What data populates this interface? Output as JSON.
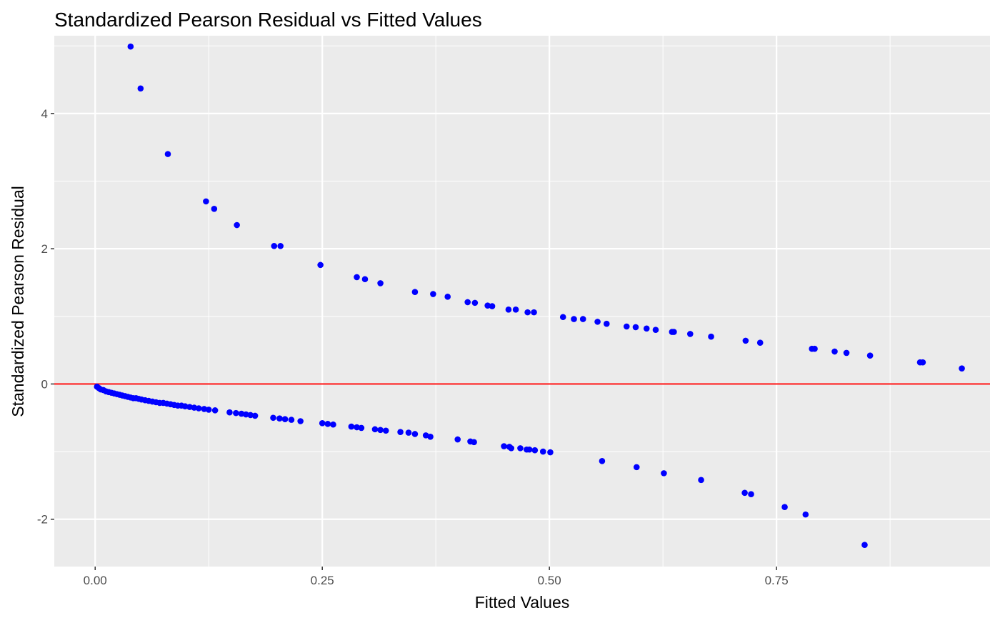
{
  "chart_data": {
    "type": "scatter",
    "title": "Standardized Pearson Residual vs Fitted Values",
    "xlabel": "Fitted Values",
    "ylabel": "Standardized Pearson Residual",
    "xlim": [
      -0.045,
      0.985
    ],
    "ylim": [
      -2.7,
      5.15
    ],
    "x_ticks": [
      0,
      0.25,
      0.5,
      0.75
    ],
    "x_tick_labels": [
      "0.00",
      "0.25",
      "0.50",
      "0.75"
    ],
    "y_ticks": [
      -2,
      0,
      2,
      4
    ],
    "y_tick_labels": [
      "-2",
      "0",
      "2",
      "4"
    ],
    "reference_line": {
      "y": 0,
      "color": "#FF0000"
    },
    "point_color": "#0000FF",
    "panel_background": "#EBEBEB",
    "grid": true,
    "legend": "none",
    "series": [
      {
        "points": [
          [
            0.039,
            4.99
          ],
          [
            0.05,
            4.37
          ],
          [
            0.08,
            3.4
          ],
          [
            0.122,
            2.7
          ],
          [
            0.131,
            2.59
          ],
          [
            0.156,
            2.35
          ],
          [
            0.197,
            2.04
          ],
          [
            0.204,
            2.04
          ],
          [
            0.248,
            1.76
          ],
          [
            0.288,
            1.58
          ],
          [
            0.297,
            1.55
          ],
          [
            0.314,
            1.49
          ],
          [
            0.352,
            1.36
          ],
          [
            0.372,
            1.33
          ],
          [
            0.388,
            1.29
          ],
          [
            0.41,
            1.21
          ],
          [
            0.418,
            1.2
          ],
          [
            0.432,
            1.16
          ],
          [
            0.437,
            1.15
          ],
          [
            0.455,
            1.1
          ],
          [
            0.463,
            1.1
          ],
          [
            0.476,
            1.06
          ],
          [
            0.483,
            1.06
          ],
          [
            0.515,
            0.99
          ],
          [
            0.527,
            0.96
          ],
          [
            0.537,
            0.96
          ],
          [
            0.553,
            0.92
          ],
          [
            0.563,
            0.89
          ],
          [
            0.585,
            0.85
          ],
          [
            0.595,
            0.84
          ],
          [
            0.607,
            0.82
          ],
          [
            0.617,
            0.8
          ],
          [
            0.635,
            0.77
          ],
          [
            0.637,
            0.77
          ],
          [
            0.655,
            0.74
          ],
          [
            0.678,
            0.7
          ],
          [
            0.716,
            0.64
          ],
          [
            0.732,
            0.61
          ],
          [
            0.789,
            0.52
          ],
          [
            0.792,
            0.52
          ],
          [
            0.814,
            0.48
          ],
          [
            0.827,
            0.46
          ],
          [
            0.853,
            0.42
          ],
          [
            0.908,
            0.32
          ],
          [
            0.911,
            0.32
          ],
          [
            0.954,
            0.23
          ],
          [
            0.002,
            -0.04
          ],
          [
            0.004,
            -0.06
          ],
          [
            0.006,
            -0.08
          ],
          [
            0.009,
            -0.09
          ],
          [
            0.012,
            -0.11
          ],
          [
            0.015,
            -0.12
          ],
          [
            0.018,
            -0.13
          ],
          [
            0.021,
            -0.14
          ],
          [
            0.024,
            -0.15
          ],
          [
            0.027,
            -0.16
          ],
          [
            0.03,
            -0.17
          ],
          [
            0.033,
            -0.18
          ],
          [
            0.036,
            -0.19
          ],
          [
            0.039,
            -0.2
          ],
          [
            0.042,
            -0.21
          ],
          [
            0.045,
            -0.21
          ],
          [
            0.048,
            -0.22
          ],
          [
            0.051,
            -0.23
          ],
          [
            0.055,
            -0.24
          ],
          [
            0.059,
            -0.25
          ],
          [
            0.063,
            -0.26
          ],
          [
            0.067,
            -0.27
          ],
          [
            0.071,
            -0.28
          ],
          [
            0.075,
            -0.28
          ],
          [
            0.079,
            -0.29
          ],
          [
            0.083,
            -0.3
          ],
          [
            0.087,
            -0.31
          ],
          [
            0.091,
            -0.32
          ],
          [
            0.095,
            -0.32
          ],
          [
            0.099,
            -0.33
          ],
          [
            0.104,
            -0.34
          ],
          [
            0.109,
            -0.35
          ],
          [
            0.114,
            -0.36
          ],
          [
            0.12,
            -0.37
          ],
          [
            0.125,
            -0.38
          ],
          [
            0.132,
            -0.39
          ],
          [
            0.148,
            -0.42
          ],
          [
            0.155,
            -0.43
          ],
          [
            0.161,
            -0.44
          ],
          [
            0.166,
            -0.45
          ],
          [
            0.171,
            -0.46
          ],
          [
            0.176,
            -0.47
          ],
          [
            0.196,
            -0.5
          ],
          [
            0.203,
            -0.51
          ],
          [
            0.209,
            -0.52
          ],
          [
            0.216,
            -0.53
          ],
          [
            0.226,
            -0.55
          ],
          [
            0.25,
            -0.58
          ],
          [
            0.256,
            -0.59
          ],
          [
            0.262,
            -0.6
          ],
          [
            0.282,
            -0.63
          ],
          [
            0.288,
            -0.64
          ],
          [
            0.293,
            -0.65
          ],
          [
            0.308,
            -0.67
          ],
          [
            0.314,
            -0.68
          ],
          [
            0.32,
            -0.69
          ],
          [
            0.336,
            -0.71
          ],
          [
            0.345,
            -0.72
          ],
          [
            0.352,
            -0.74
          ],
          [
            0.364,
            -0.76
          ],
          [
            0.369,
            -0.78
          ],
          [
            0.399,
            -0.82
          ],
          [
            0.413,
            -0.85
          ],
          [
            0.417,
            -0.86
          ],
          [
            0.45,
            -0.92
          ],
          [
            0.456,
            -0.93
          ],
          [
            0.458,
            -0.95
          ],
          [
            0.468,
            -0.95
          ],
          [
            0.475,
            -0.97
          ],
          [
            0.478,
            -0.97
          ],
          [
            0.484,
            -0.98
          ],
          [
            0.493,
            -1.0
          ],
          [
            0.501,
            -1.01
          ],
          [
            0.558,
            -1.14
          ],
          [
            0.596,
            -1.23
          ],
          [
            0.626,
            -1.32
          ],
          [
            0.667,
            -1.42
          ],
          [
            0.715,
            -1.61
          ],
          [
            0.722,
            -1.63
          ],
          [
            0.759,
            -1.82
          ],
          [
            0.782,
            -1.93
          ],
          [
            0.847,
            -2.38
          ]
        ]
      }
    ]
  }
}
